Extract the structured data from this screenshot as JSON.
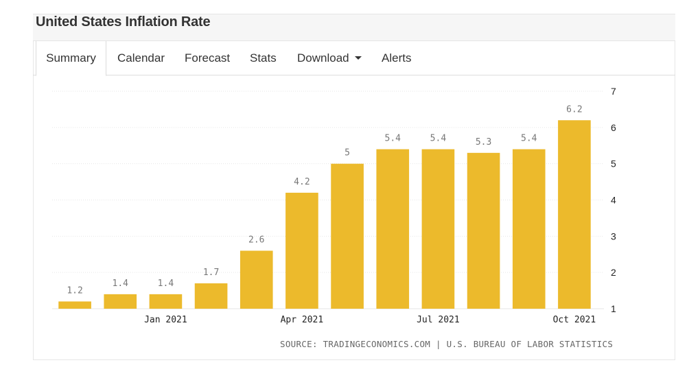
{
  "header": {
    "title": "United States Inflation Rate"
  },
  "tabs": [
    {
      "label": "Summary",
      "active": true
    },
    {
      "label": "Calendar"
    },
    {
      "label": "Forecast"
    },
    {
      "label": "Stats"
    },
    {
      "label": "Download"
    },
    {
      "label": "Alerts"
    }
  ],
  "colors": {
    "bar": "#ECBA2C",
    "grid": "#e6e6e6",
    "axis_text": "#222222",
    "label_text": "#777777"
  },
  "chart_data": {
    "type": "bar",
    "categories": [
      "",
      "",
      "Jan 2021",
      "",
      "",
      "Apr 2021",
      "",
      "",
      "Jul 2021",
      "",
      "",
      "Oct 2021"
    ],
    "values": [
      1.2,
      1.4,
      1.4,
      1.7,
      2.6,
      4.2,
      5,
      5.4,
      5.4,
      5.3,
      5.4,
      6.2
    ],
    "data_labels": [
      "1.2",
      "1.4",
      "1.4",
      "1.7",
      "2.6",
      "4.2",
      "5",
      "5.4",
      "5.4",
      "5.3",
      "5.4",
      "6.2"
    ],
    "xticks": [
      "Jan 2021",
      "Apr 2021",
      "Jul 2021",
      "Oct 2021"
    ],
    "yticks": [
      "1",
      "2",
      "3",
      "4",
      "5",
      "6",
      "7"
    ],
    "ylim": [
      1,
      7
    ],
    "y_axis_side": "right",
    "grid": true
  },
  "source": "SOURCE: TRADINGECONOMICS.COM | U.S. BUREAU OF LABOR STATISTICS"
}
